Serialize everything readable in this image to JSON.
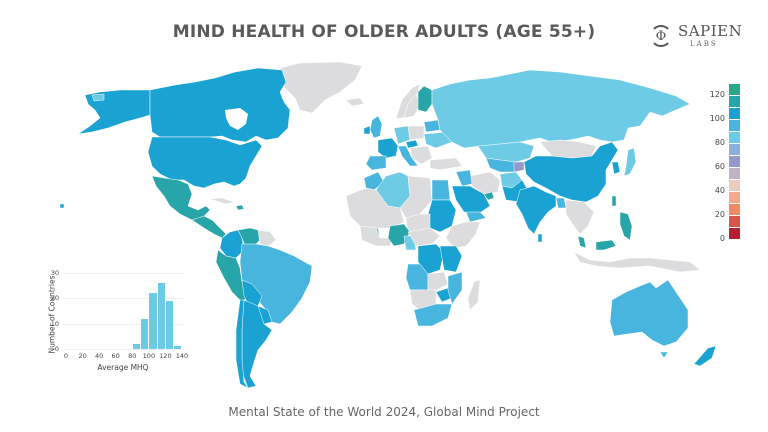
{
  "header": {
    "title": "MIND HEALTH OF OLDER ADULTS (AGE 55+)"
  },
  "logo": {
    "symbol": "Φ",
    "name": "SAPIEN",
    "sub": "LABS"
  },
  "footer": {
    "caption": "Mental State of the World 2024, Global Mind Project"
  },
  "colors": {
    "no_data": "#dcdcdf",
    "ocean": "#ffffff",
    "histogram_bar": "#6ccbe4"
  },
  "legend": {
    "labels": [
      "120",
      "100",
      "80",
      "60",
      "40",
      "20",
      "0"
    ],
    "bins": [
      {
        "range": "125-135",
        "color": "#2aa98a"
      },
      {
        "range": "115-125",
        "color": "#27a5a8"
      },
      {
        "range": "105-115",
        "color": "#1aa2d3"
      },
      {
        "range": "95-105",
        "color": "#47b5de"
      },
      {
        "range": "85-95",
        "color": "#6dcbe6"
      },
      {
        "range": "75-85",
        "color": "#8bb1d8"
      },
      {
        "range": "65-75",
        "color": "#9499cc"
      },
      {
        "range": "55-65",
        "color": "#bfb3c4"
      },
      {
        "range": "45-55",
        "color": "#ecccbb"
      },
      {
        "range": "35-45",
        "color": "#f0aa8c"
      },
      {
        "range": "25-35",
        "color": "#ef8a62"
      },
      {
        "range": "15-25",
        "color": "#d6574a"
      },
      {
        "range": "5-15",
        "color": "#b61f30"
      }
    ]
  },
  "chart_data": {
    "type": "bar",
    "title": "",
    "xlabel": "Average MHQ",
    "ylabel": "Number of Countries",
    "x_ticks": [
      "0",
      "20",
      "40",
      "60",
      "80",
      "100",
      "120",
      "140"
    ],
    "y_ticks": [
      "0",
      "10",
      "20",
      "30"
    ],
    "xlim": [
      0,
      140
    ],
    "ylim": [
      0,
      30
    ],
    "categories": [
      "80-90",
      "90-100",
      "100-110",
      "110-120",
      "120-130",
      "130-140"
    ],
    "bin_starts": [
      80,
      90,
      100,
      110,
      120,
      130
    ],
    "values": [
      2,
      12,
      22,
      26,
      19,
      1
    ],
    "grid": true
  },
  "map": {
    "regions": [
      {
        "name": "Canada",
        "fill": "#1aa2d3"
      },
      {
        "name": "United States",
        "fill": "#1aa2d3"
      },
      {
        "name": "Alaska",
        "fill": "#1aa2d3"
      },
      {
        "name": "Greenland",
        "fill": "#dcdcdf"
      },
      {
        "name": "Mexico",
        "fill": "#27a5a8"
      },
      {
        "name": "Central America",
        "fill": "#27a5a8"
      },
      {
        "name": "Colombia",
        "fill": "#1aa2d3"
      },
      {
        "name": "Venezuela",
        "fill": "#27a5a8"
      },
      {
        "name": "Peru",
        "fill": "#27a5a8"
      },
      {
        "name": "Brazil",
        "fill": "#47b5de"
      },
      {
        "name": "Bolivia",
        "fill": "#1aa2d3"
      },
      {
        "name": "Argentina",
        "fill": "#1aa2d3"
      },
      {
        "name": "Chile",
        "fill": "#1aa2d3"
      },
      {
        "name": "Russia",
        "fill": "#6dcbe6"
      },
      {
        "name": "Kazakhstan",
        "fill": "#6dcbe6"
      },
      {
        "name": "China",
        "fill": "#1aa2d3"
      },
      {
        "name": "Mongolia",
        "fill": "#dcdcdf"
      },
      {
        "name": "India",
        "fill": "#1aa2d3"
      },
      {
        "name": "Saudi Arabia",
        "fill": "#1aa2d3"
      },
      {
        "name": "Algeria",
        "fill": "#6dcbe6"
      },
      {
        "name": "Sudan",
        "fill": "#1aa2d3"
      },
      {
        "name": "Nigeria",
        "fill": "#27a5a8"
      },
      {
        "name": "Australia",
        "fill": "#47b5de"
      },
      {
        "name": "New Zealand",
        "fill": "#1aa2d3"
      },
      {
        "name": "Finland",
        "fill": "#27a5a8"
      },
      {
        "name": "Philippines",
        "fill": "#27a5a8"
      },
      {
        "name": "South Africa",
        "fill": "#47b5de"
      },
      {
        "name": "DR Congo",
        "fill": "#1aa2d3"
      }
    ]
  }
}
